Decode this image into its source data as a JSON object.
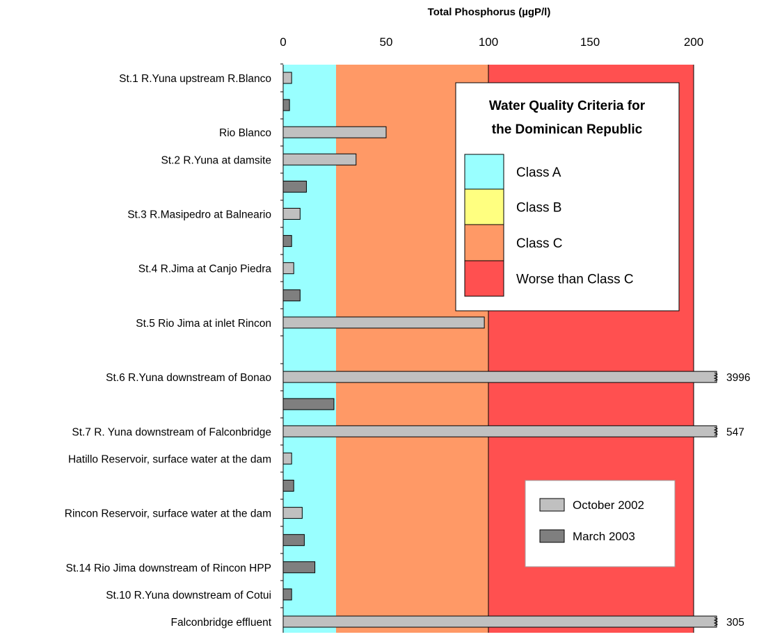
{
  "chart_data": {
    "type": "bar",
    "orientation": "horizontal",
    "title": "Total Phosphorus (µgP/l)",
    "x_axis": {
      "position": "top",
      "ticks": [
        0,
        50,
        100,
        150,
        200
      ],
      "note": "broken scale"
    },
    "zones": [
      {
        "label": "Class A",
        "from": 0,
        "to": 25,
        "color": "#99FFFF"
      },
      {
        "label": "Class B",
        "from": 25,
        "to": 25,
        "color": "#FFFF80"
      },
      {
        "label": "Class C",
        "from": 25,
        "to": 100,
        "color": "#FF9966"
      },
      {
        "label": "Worse than Class C",
        "from": 100,
        "to": 200,
        "color": "#FF5050"
      }
    ],
    "zone_legend_title": [
      "Water Quality Criteria for",
      "the Dominican Republic"
    ],
    "series": [
      {
        "name": "October 2002",
        "color": "#C0C0C0"
      },
      {
        "name": "March 2003",
        "color": "#7F7F7F"
      }
    ],
    "categories": [
      {
        "label": "St.1 R.Yuna upstream R.Blanco",
        "october_2002": 4,
        "march_2003": 3
      },
      {
        "label": "Rio Blanco",
        "october_2002": 50,
        "march_2003": null
      },
      {
        "label": "St.2 R.Yuna at damsite",
        "october_2002": 35,
        "march_2003": 11
      },
      {
        "label": "St.3 R.Masipedro at Balneario",
        "october_2002": 8,
        "march_2003": 4
      },
      {
        "label": "St.4 R.Jima at Canjo Piedra",
        "october_2002": 5,
        "march_2003": 8
      },
      {
        "label": "St.5 Rio Jima at inlet Rincon",
        "october_2002": 98,
        "march_2003": null
      },
      {
        "label": "St.6 R.Yuna downstream of Bonao",
        "october_2002": 3996,
        "march_2003": 24
      },
      {
        "label": "St.7 R. Yuna downstream of Falconbridge",
        "october_2002": 547,
        "march_2003": null
      },
      {
        "label": "Hatillo Reservoir, surface water at the dam",
        "october_2002": 4,
        "march_2003": 5
      },
      {
        "label": "Rincon Reservoir, surface water at the dam",
        "october_2002": 9,
        "march_2003": 10
      },
      {
        "label": "St.14 Rio Jima downstream of Rincon HPP",
        "october_2002": null,
        "march_2003": 15
      },
      {
        "label": "St.10 R.Yuna downstream of Cotui",
        "october_2002": null,
        "march_2003": 4
      },
      {
        "label": "Falconbridge effluent",
        "october_2002": 305,
        "march_2003": null
      }
    ]
  }
}
